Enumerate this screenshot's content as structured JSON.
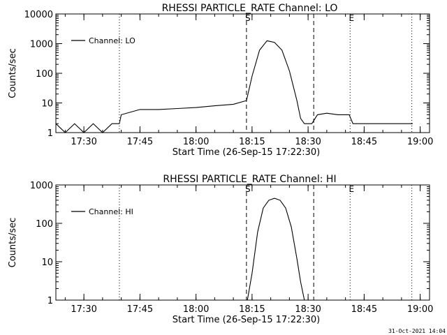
{
  "footer_date": "31-Oct-2021 14:04",
  "chart_data": [
    {
      "type": "line",
      "title": "RHESSI PARTICLE_RATE Channel: LO",
      "xlabel": "Start Time (26-Sep-15 17:22:30)",
      "ylabel": "Counts/sec",
      "y_scale": "log",
      "ylim": [
        1,
        10000
      ],
      "y_ticks": [
        1,
        10,
        100,
        1000,
        10000
      ],
      "y_tick_labels": [
        "1",
        "10",
        "100",
        "1000",
        "10000"
      ],
      "xlim": [
        "17:22:30",
        "19:02:30"
      ],
      "x_ticks": [
        "17:30",
        "17:45",
        "18:00",
        "18:15",
        "18:30",
        "18:45",
        "19:00"
      ],
      "legend": {
        "placement": "top-left",
        "entries": [
          "Channel: LO"
        ]
      },
      "markers": [
        {
          "time": "17:39:30",
          "style": "dotted",
          "label": ""
        },
        {
          "time": "18:13:30",
          "style": "dashed",
          "label": "S"
        },
        {
          "time": "18:31:30",
          "style": "dashed",
          "label": ""
        },
        {
          "time": "18:41:15",
          "style": "dotted",
          "label": "E"
        },
        {
          "time": "18:57:45",
          "style": "dotted",
          "label": ""
        }
      ],
      "series": [
        {
          "name": "Channel: LO",
          "x": [
            "17:22:30",
            "17:25:00",
            "17:27:30",
            "17:30:00",
            "17:32:30",
            "17:35:00",
            "17:37:30",
            "17:39:30",
            "17:40:00",
            "17:45:00",
            "17:50:00",
            "17:55:00",
            "18:00:00",
            "18:05:00",
            "18:10:00",
            "18:13:30",
            "18:15:00",
            "18:17:00",
            "18:19:00",
            "18:21:00",
            "18:23:00",
            "18:25:00",
            "18:27:00",
            "18:28:00",
            "18:29:00",
            "18:31:00",
            "18:32:30",
            "18:35:00",
            "18:38:00",
            "18:41:00",
            "18:42:00",
            "18:45:00",
            "18:48:00",
            "18:50:00",
            "18:53:00",
            "18:56:00",
            "18:58:00"
          ],
          "values": [
            2,
            1,
            2,
            1,
            2,
            1,
            2,
            2,
            4,
            6,
            6,
            6.5,
            7,
            8,
            9,
            12,
            80,
            600,
            1250,
            1100,
            600,
            120,
            12,
            3,
            2,
            2,
            4,
            4.5,
            4,
            4,
            2,
            2,
            2,
            2,
            2,
            2,
            2
          ]
        }
      ]
    },
    {
      "type": "line",
      "title": "RHESSI PARTICLE_RATE Channel: HI",
      "xlabel": "Start Time (26-Sep-15 17:22:30)",
      "ylabel": "Counts/sec",
      "y_scale": "log",
      "ylim": [
        1,
        1000
      ],
      "y_ticks": [
        1,
        10,
        100,
        1000
      ],
      "y_tick_labels": [
        "1",
        "10",
        "100",
        "1000"
      ],
      "xlim": [
        "17:22:30",
        "19:02:30"
      ],
      "x_ticks": [
        "17:30",
        "17:45",
        "18:00",
        "18:15",
        "18:30",
        "18:45",
        "19:00"
      ],
      "legend": {
        "placement": "top-left",
        "entries": [
          "Channel: HI"
        ]
      },
      "markers": [
        {
          "time": "17:39:30",
          "style": "dotted",
          "label": ""
        },
        {
          "time": "18:13:30",
          "style": "dashed",
          "label": "S"
        },
        {
          "time": "18:31:30",
          "style": "dashed",
          "label": ""
        },
        {
          "time": "18:41:15",
          "style": "dotted",
          "label": "E"
        },
        {
          "time": "18:57:45",
          "style": "dotted",
          "label": ""
        }
      ],
      "series": [
        {
          "name": "Channel: HI",
          "x": [
            "18:13:45",
            "18:15:00",
            "18:16:30",
            "18:18:00",
            "18:19:30",
            "18:21:00",
            "18:22:30",
            "18:24:00",
            "18:25:30",
            "18:27:00",
            "18:28:00",
            "18:29:00"
          ],
          "values": [
            1,
            5,
            60,
            250,
            400,
            450,
            400,
            250,
            80,
            12,
            3,
            1
          ]
        }
      ]
    }
  ]
}
